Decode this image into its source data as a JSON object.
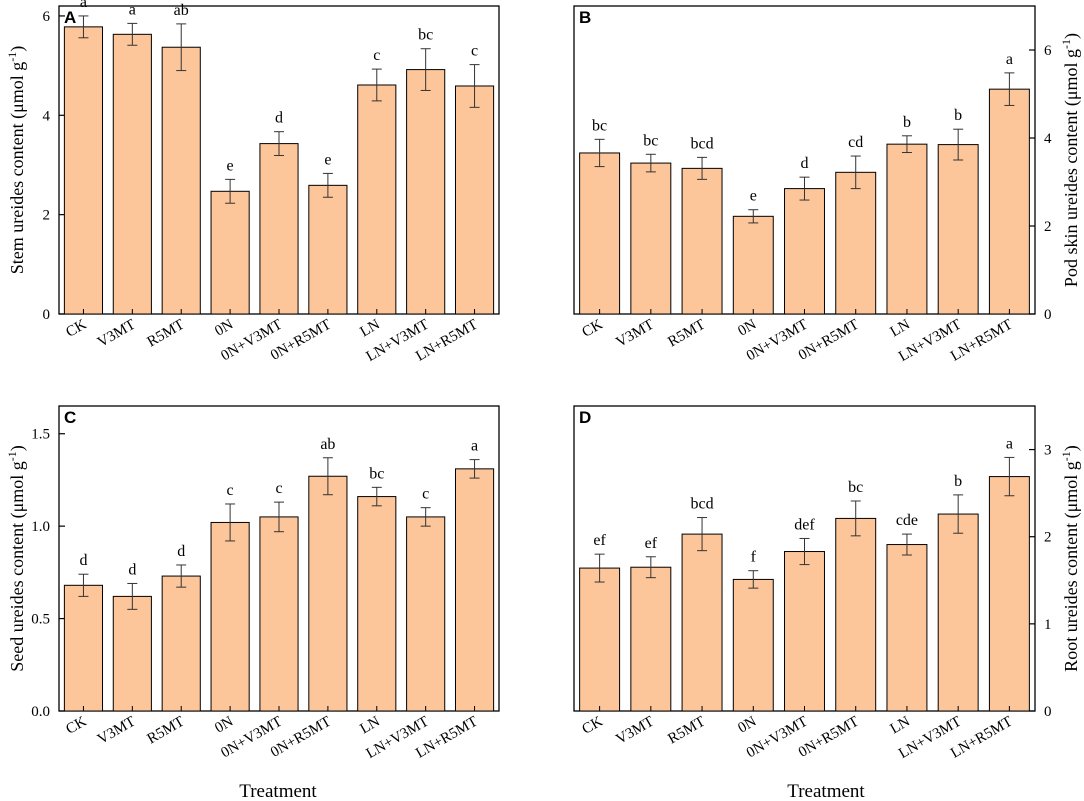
{
  "figure": {
    "x_title": "Treatment",
    "bar_color": "#fcc69a",
    "bar_edge": "#000000",
    "ylabel_prefix": "ureides content (μmol g",
    "ylabel_suffix": ")",
    "ylabel_superscript": "-1"
  },
  "chart_data": [
    {
      "type": "bar",
      "panel": "A",
      "ylabel_lead": "Stem",
      "ylabel_side": "left",
      "ylim": [
        0,
        6.2
      ],
      "yticks": [
        "0",
        "2",
        "4",
        "6"
      ],
      "ytick_values": [
        0,
        2,
        4,
        6
      ],
      "categories": [
        "CK",
        "V3MT",
        "R5MT",
        "0N",
        "0N+V3MT",
        "0N+R5MT",
        "LN",
        "LN+V3MT",
        "LN+R5MT"
      ],
      "values": [
        5.78,
        5.63,
        5.37,
        2.47,
        3.43,
        2.59,
        4.61,
        4.92,
        4.59
      ],
      "errors": [
        0.22,
        0.22,
        0.47,
        0.24,
        0.24,
        0.24,
        0.32,
        0.42,
        0.43
      ],
      "labels": [
        "a",
        "a",
        "ab",
        "e",
        "d",
        "e",
        "c",
        "bc",
        "c"
      ]
    },
    {
      "type": "bar",
      "panel": "B",
      "ylabel_lead": "Pod skin",
      "ylabel_side": "right",
      "ylim": [
        0,
        7
      ],
      "yticks": [
        "0",
        "2",
        "4",
        "6"
      ],
      "ytick_values": [
        0,
        2,
        4,
        6
      ],
      "categories": [
        "CK",
        "V3MT",
        "R5MT",
        "0N",
        "0N+V3MT",
        "0N+R5MT",
        "LN",
        "LN+V3MT",
        "LN+R5MT"
      ],
      "values": [
        3.66,
        3.43,
        3.31,
        2.22,
        2.85,
        3.22,
        3.86,
        3.85,
        5.11
      ],
      "errors": [
        0.31,
        0.2,
        0.25,
        0.15,
        0.26,
        0.37,
        0.19,
        0.35,
        0.37
      ],
      "labels": [
        "bc",
        "bc",
        "bcd",
        "e",
        "d",
        "cd",
        "b",
        "b",
        "a"
      ]
    },
    {
      "type": "bar",
      "panel": "C",
      "ylabel_lead": "Seed",
      "ylabel_side": "left",
      "ylim": [
        0,
        1.65
      ],
      "yticks": [
        "0.0",
        "0.5",
        "1.0",
        "1.5"
      ],
      "ytick_values": [
        0,
        0.5,
        1.0,
        1.5
      ],
      "categories": [
        "CK",
        "V3MT",
        "R5MT",
        "0N",
        "0N+V3MT",
        "0N+R5MT",
        "LN",
        "LN+V3MT",
        "LN+R5MT"
      ],
      "values": [
        0.68,
        0.62,
        0.73,
        1.02,
        1.05,
        1.27,
        1.16,
        1.05,
        1.31
      ],
      "errors": [
        0.06,
        0.07,
        0.06,
        0.1,
        0.08,
        0.1,
        0.05,
        0.05,
        0.05
      ],
      "labels": [
        "d",
        "d",
        "d",
        "c",
        "c",
        "ab",
        "bc",
        "c",
        "a"
      ]
    },
    {
      "type": "bar",
      "panel": "D",
      "ylabel_lead": "Root",
      "ylabel_side": "right",
      "ylim": [
        0,
        3.5
      ],
      "yticks": [
        "0",
        "1",
        "2",
        "3"
      ],
      "ytick_values": [
        0,
        1,
        2,
        3
      ],
      "categories": [
        "CK",
        "V3MT",
        "R5MT",
        "0N",
        "0N+V3MT",
        "0N+R5MT",
        "LN",
        "LN+V3MT",
        "LN+R5MT"
      ],
      "values": [
        1.64,
        1.65,
        2.03,
        1.51,
        1.83,
        2.21,
        1.91,
        2.26,
        2.69
      ],
      "errors": [
        0.16,
        0.12,
        0.19,
        0.1,
        0.15,
        0.2,
        0.12,
        0.22,
        0.22
      ],
      "labels": [
        "ef",
        "ef",
        "bcd",
        "f",
        "def",
        "bc",
        "cde",
        "b",
        "a"
      ]
    }
  ]
}
